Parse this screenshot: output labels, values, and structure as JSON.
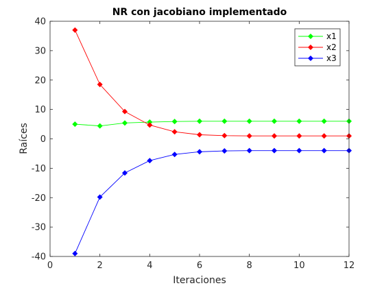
{
  "chart_data": {
    "type": "line",
    "title": "NR con jacobiano implementado",
    "xlabel": "Iteraciones",
    "ylabel": "Raíces",
    "xlim": [
      0,
      12
    ],
    "ylim": [
      -40,
      40
    ],
    "xticks": [
      0,
      2,
      4,
      6,
      8,
      10,
      12
    ],
    "yticks": [
      -40,
      -30,
      -20,
      -10,
      0,
      10,
      20,
      30,
      40
    ],
    "grid": false,
    "legend_position": "top-right",
    "x": [
      1,
      2,
      3,
      4,
      5,
      6,
      7,
      8,
      9,
      10,
      11,
      12
    ],
    "series": [
      {
        "name": "x1",
        "color": "#00ff00",
        "marker": "diamond",
        "values": [
          5.0,
          4.4,
          5.4,
          5.7,
          5.9,
          6.0,
          6.0,
          6.0,
          6.0,
          6.0,
          6.0,
          6.0
        ]
      },
      {
        "name": "x2",
        "color": "#ff0000",
        "marker": "diamond",
        "values": [
          37.0,
          18.5,
          9.3,
          4.7,
          2.4,
          1.4,
          1.1,
          1.0,
          1.0,
          1.0,
          1.0,
          1.0
        ]
      },
      {
        "name": "x3",
        "color": "#0000ff",
        "marker": "diamond",
        "values": [
          -39.0,
          -19.8,
          -11.6,
          -7.4,
          -5.3,
          -4.4,
          -4.1,
          -4.0,
          -4.0,
          -4.0,
          -4.0,
          -4.0
        ]
      }
    ]
  }
}
